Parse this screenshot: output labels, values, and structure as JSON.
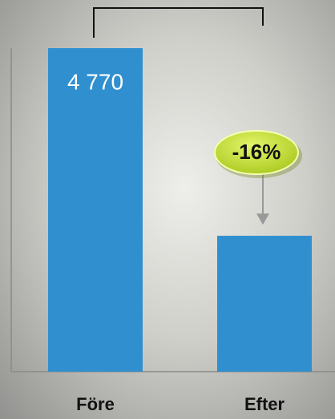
{
  "chart_data": {
    "type": "bar",
    "categories": [
      "Före",
      "Efter"
    ],
    "values": [
      4770,
      4010
    ],
    "value_labels": [
      "4 770",
      null
    ],
    "color": "#2f8fcf",
    "ylim": [
      3460,
      4770
    ],
    "annotation": "-16%"
  }
}
